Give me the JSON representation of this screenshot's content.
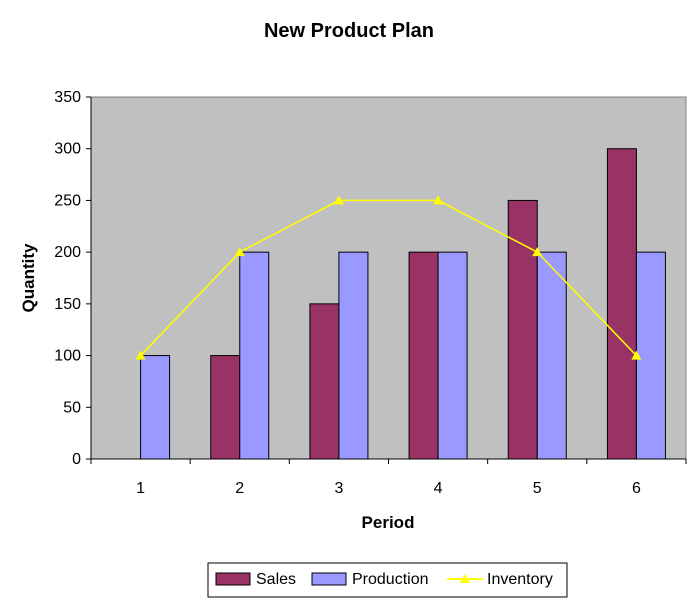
{
  "chart_data": {
    "type": "bar",
    "title": "New Product Plan",
    "xlabel": "Period",
    "ylabel": "Quantity",
    "categories": [
      "1",
      "2",
      "3",
      "4",
      "5",
      "6"
    ],
    "ylim": [
      0,
      350
    ],
    "yticks": [
      0,
      50,
      100,
      150,
      200,
      250,
      300,
      350
    ],
    "grid": false,
    "legend_position": "bottom",
    "series": [
      {
        "name": "Sales",
        "type": "bar",
        "color": "#993366",
        "values": [
          0,
          100,
          150,
          200,
          250,
          300
        ]
      },
      {
        "name": "Production",
        "type": "bar",
        "color": "#9999FF",
        "values": [
          100,
          200,
          200,
          200,
          200,
          200
        ]
      },
      {
        "name": "Inventory",
        "type": "line",
        "color": "#FFFF00",
        "marker": "triangle",
        "values": [
          100,
          200,
          250,
          250,
          200,
          100
        ]
      }
    ],
    "plot_background": "#C0C0C0"
  }
}
